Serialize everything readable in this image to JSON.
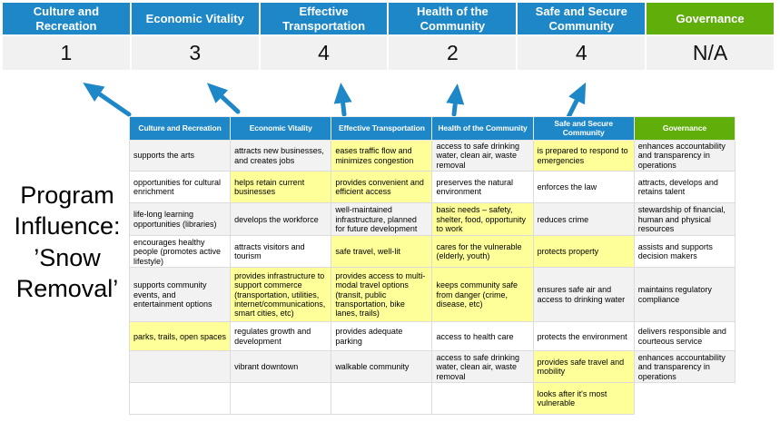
{
  "colors": {
    "header_blue": "#1E87C8",
    "header_green": "#5FAE0A",
    "highlight_yellow": "#FFFF99",
    "band_gray": "#F2F2F2",
    "score_bg": "#F1F1F1",
    "arrow_blue": "#1E87C8"
  },
  "program_label": "Program\nInfluence:\n’Snow\nRemoval’",
  "summary": {
    "columns": [
      {
        "label": "Culture and Recreation",
        "score": "1"
      },
      {
        "label": "Economic Vitality",
        "score": "3"
      },
      {
        "label": "Effective Transportation",
        "score": "4"
      },
      {
        "label": "Health of the Community",
        "score": "2"
      },
      {
        "label": "Safe and Secure Community",
        "score": "4"
      },
      {
        "label": "Governance",
        "score": "N/A"
      }
    ]
  },
  "matrix": {
    "headers": [
      "Culture and Recreation",
      "Economic Vitality",
      "Effective Transportation",
      "Health of the Community",
      "Safe and Secure Community",
      "Governance"
    ],
    "rows": [
      [
        {
          "t": "supports the arts",
          "hl": false
        },
        {
          "t": "attracts new businesses, and creates jobs",
          "hl": false
        },
        {
          "t": "eases traffic flow and minimizes congestion",
          "hl": true
        },
        {
          "t": "access to safe drinking water, clean air, waste removal",
          "hl": false
        },
        {
          "t": "is prepared to respond to emergencies",
          "hl": true
        },
        {
          "t": "enhances accountability and transparency in operations",
          "hl": false
        }
      ],
      [
        {
          "t": "opportunities for cultural enrichment",
          "hl": false
        },
        {
          "t": "helps retain current businesses",
          "hl": true
        },
        {
          "t": "provides convenient and efficient access",
          "hl": true
        },
        {
          "t": "preserves the natural environment",
          "hl": false
        },
        {
          "t": "enforces the law",
          "hl": false
        },
        {
          "t": "attracts, develops and retains talent",
          "hl": false
        }
      ],
      [
        {
          "t": "life-long learning opportunities (libraries)",
          "hl": false
        },
        {
          "t": "develops the workforce",
          "hl": false
        },
        {
          "t": "well-maintained infrastructure, planned for future development",
          "hl": false
        },
        {
          "t": "basic needs – safety, shelter, food, opportunity to work",
          "hl": true
        },
        {
          "t": "reduces crime",
          "hl": false
        },
        {
          "t": "stewardship of financial, human and physical resources",
          "hl": false
        }
      ],
      [
        {
          "t": "encourages healthy people (promotes active lifestyle)",
          "hl": false
        },
        {
          "t": "attracts visitors and tourism",
          "hl": false
        },
        {
          "t": "safe travel, well-lit",
          "hl": true
        },
        {
          "t": "cares for the vulnerable (elderly, youth)",
          "hl": true
        },
        {
          "t": "protects property",
          "hl": true
        },
        {
          "t": "assists and supports decision makers",
          "hl": false
        }
      ],
      [
        {
          "t": "supports community events, and entertainment options",
          "hl": false
        },
        {
          "t": "provides infrastructure to support commerce (transportation, utilities, internet/communications, smart cities, etc)",
          "hl": true
        },
        {
          "t": "provides access to multi-modal travel options (transit, public transportation, bike lanes, trails)",
          "hl": true
        },
        {
          "t": "keeps community safe from danger (crime, disease, etc)",
          "hl": true
        },
        {
          "t": "ensures safe air and access to drinking water",
          "hl": false
        },
        {
          "t": "maintains regulatory compliance",
          "hl": false
        }
      ],
      [
        {
          "t": "parks, trails, open spaces",
          "hl": true
        },
        {
          "t": "regulates growth and development",
          "hl": false
        },
        {
          "t": "provides adequate parking",
          "hl": false
        },
        {
          "t": "access to health care",
          "hl": false
        },
        {
          "t": "protects the environment",
          "hl": false
        },
        {
          "t": "delivers responsible and courteous service",
          "hl": false
        }
      ],
      [
        {
          "t": "",
          "hl": false
        },
        {
          "t": "vibrant downtown",
          "hl": false
        },
        {
          "t": "walkable community",
          "hl": false
        },
        {
          "t": "access to safe drinking water, clean air, waste removal",
          "hl": false
        },
        {
          "t": "provides safe travel and mobility",
          "hl": true
        },
        {
          "t": "enhances accountability and transparency in operations",
          "hl": false
        }
      ],
      [
        {
          "t": "",
          "hl": false
        },
        {
          "t": "",
          "hl": false
        },
        {
          "t": "",
          "hl": false
        },
        {
          "t": "",
          "hl": false
        },
        {
          "t": "looks after it's most vulnerable",
          "hl": true
        },
        null
      ]
    ]
  }
}
